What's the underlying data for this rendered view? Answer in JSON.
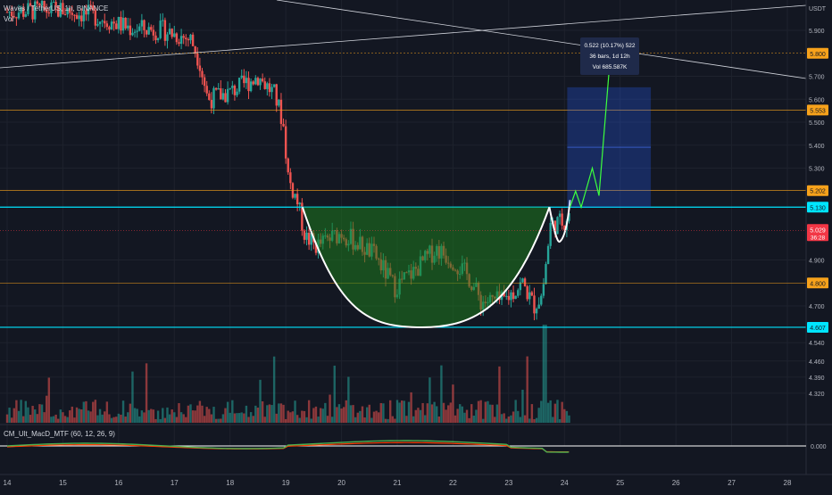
{
  "header": {
    "title": "Waves / TetherUS, 1h, BINANCE",
    "volume_label": "Vol"
  },
  "indicator": {
    "title": "CM_Ult_MacD_MTF (60, 12, 26, 9)",
    "zero_label": "0.000"
  },
  "measure": {
    "line1": "0.522 (10.17%) 522",
    "line2": "36 bars, 1d 12h",
    "line3": "Vol 685.587K"
  },
  "chart_data": {
    "type": "candlestick",
    "symbol": "Waves / TetherUS",
    "timeframe": "1h",
    "exchange": "BINANCE",
    "y_axis_label": "USDT",
    "y_ticks": [
      "5.900",
      "5.800",
      "5.700",
      "5.600",
      "5.500",
      "5.400",
      "5.300",
      "5.200",
      "5.100",
      "5.029",
      "4.900",
      "4.800",
      "4.700",
      "4.607",
      "4.540",
      "4.460",
      "4.390",
      "4.320"
    ],
    "price_ticks": [
      5.9,
      5.7,
      5.6,
      5.5,
      5.4,
      5.3,
      4.9,
      4.7,
      4.54,
      4.46,
      4.39,
      4.32
    ],
    "x_ticks": [
      "14",
      "15",
      "16",
      "17",
      "18",
      "19",
      "20",
      "21",
      "22",
      "23",
      "24",
      "25",
      "26",
      "27",
      "28"
    ],
    "horizontal_levels": [
      {
        "label": "5.800",
        "value": 5.8,
        "style": "dotted",
        "color": "#f7a21b"
      },
      {
        "label": "5.553",
        "value": 5.553,
        "color": "#f7a21b"
      },
      {
        "label": "5.202",
        "value": 5.202,
        "color": "#f7a21b"
      },
      {
        "label": "5.130",
        "value": 5.13,
        "color": "#00e5ff"
      },
      {
        "label": "4.800",
        "value": 4.8,
        "color": "#f7a21b"
      },
      {
        "label": "4.607",
        "value": 4.607,
        "color": "#00e5ff"
      }
    ],
    "current_price": {
      "label": "5.029",
      "value": 5.029,
      "countdown": "36:28",
      "color": "#f23645"
    },
    "pattern": "cup and handle",
    "cup": {
      "left_rim": 5.13,
      "bottom": 4.607,
      "right_rim": 5.13
    },
    "projection": {
      "from": 5.13,
      "to": 5.652,
      "change": "0.522 (10.17%)",
      "bars": 36
    },
    "indicator_zero": 0.0,
    "colors": {
      "up": "#26a69a",
      "down": "#ef5350",
      "cup_fill": "#1e7a1e",
      "projection_box": "#2962ff",
      "projection_path": "#3dff3d"
    }
  }
}
